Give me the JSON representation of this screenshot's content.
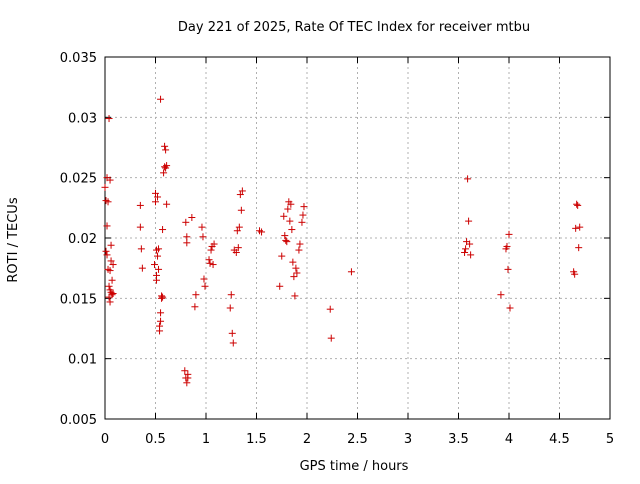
{
  "chart_data": {
    "type": "scatter",
    "title": "Day 221 of 2025, Rate Of TEC Index for receiver mtbu",
    "xlabel": "GPS time / hours",
    "ylabel": "ROTI / TECUs",
    "xlim": [
      0,
      5
    ],
    "ylim": [
      0.005,
      0.035
    ],
    "xticks": [
      0,
      0.5,
      1,
      1.5,
      2,
      2.5,
      3,
      3.5,
      4,
      4.5,
      5
    ],
    "xtick_labels": [
      "0",
      "0.5",
      "1",
      "1.5",
      "2",
      "2.5",
      "3",
      "3.5",
      "4",
      "4.5",
      "5"
    ],
    "yticks": [
      0.005,
      0.01,
      0.015,
      0.02,
      0.025,
      0.03,
      0.035
    ],
    "ytick_labels": [
      "0.005",
      "0.01",
      "0.015",
      "0.02",
      "0.025",
      "0.03",
      "0.035"
    ],
    "grid": true,
    "marker": "+",
    "series": [
      {
        "name": "ROTI",
        "color": "#cc0000",
        "x": [
          0.0,
          0.01,
          0.01,
          0.02,
          0.02,
          0.02,
          0.03,
          0.03,
          0.04,
          0.04,
          0.04,
          0.05,
          0.05,
          0.05,
          0.05,
          0.06,
          0.06,
          0.06,
          0.07,
          0.07,
          0.08,
          0.08,
          0.35,
          0.35,
          0.36,
          0.37,
          0.49,
          0.5,
          0.5,
          0.51,
          0.51,
          0.51,
          0.52,
          0.52,
          0.53,
          0.53,
          0.54,
          0.54,
          0.55,
          0.55,
          0.55,
          0.56,
          0.56,
          0.57,
          0.57,
          0.58,
          0.59,
          0.59,
          0.6,
          0.6,
          0.61,
          0.61,
          0.79,
          0.8,
          0.8,
          0.81,
          0.81,
          0.81,
          0.82,
          0.82,
          0.86,
          0.89,
          0.9,
          0.96,
          0.97,
          0.98,
          0.99,
          1.03,
          1.04,
          1.05,
          1.06,
          1.07,
          1.08,
          1.24,
          1.25,
          1.26,
          1.27,
          1.28,
          1.3,
          1.31,
          1.32,
          1.33,
          1.34,
          1.35,
          1.36,
          1.53,
          1.55,
          1.73,
          1.75,
          1.77,
          1.78,
          1.79,
          1.8,
          1.81,
          1.82,
          1.83,
          1.84,
          1.85,
          1.86,
          1.87,
          1.88,
          1.89,
          1.9,
          1.92,
          1.93,
          1.95,
          1.96,
          1.97,
          2.23,
          2.24,
          2.44,
          3.56,
          3.57,
          3.58,
          3.59,
          3.6,
          3.61,
          3.62,
          3.92,
          3.97,
          3.98,
          3.99,
          4.0,
          4.01,
          4.64,
          4.65,
          4.66,
          4.67,
          4.68,
          4.69,
          4.7
        ],
        "y": [
          0.0242,
          0.0231,
          0.0189,
          0.025,
          0.021,
          0.0186,
          0.023,
          0.0174,
          0.0299,
          0.016,
          0.0151,
          0.0248,
          0.0157,
          0.0147,
          0.0173,
          0.0194,
          0.0155,
          0.0181,
          0.0165,
          0.0153,
          0.0154,
          0.0178,
          0.0227,
          0.0209,
          0.0191,
          0.0175,
          0.0178,
          0.0237,
          0.023,
          0.019,
          0.0169,
          0.0165,
          0.0234,
          0.0185,
          0.0191,
          0.0174,
          0.0127,
          0.0123,
          0.0315,
          0.0138,
          0.0131,
          0.0152,
          0.015,
          0.0151,
          0.0207,
          0.0254,
          0.0276,
          0.0259,
          0.0258,
          0.0273,
          0.0228,
          0.026,
          0.009,
          0.0213,
          0.0084,
          0.0201,
          0.0196,
          0.008,
          0.0087,
          0.0084,
          0.0217,
          0.0143,
          0.0153,
          0.0209,
          0.0201,
          0.0166,
          0.016,
          0.0182,
          0.0179,
          0.019,
          0.0193,
          0.0178,
          0.0195,
          0.0142,
          0.0153,
          0.0121,
          0.0113,
          0.019,
          0.0188,
          0.0206,
          0.0192,
          0.0209,
          0.0236,
          0.0223,
          0.0239,
          0.0206,
          0.0205,
          0.016,
          0.0185,
          0.0218,
          0.0202,
          0.0198,
          0.0197,
          0.0224,
          0.023,
          0.0214,
          0.0228,
          0.0207,
          0.018,
          0.0168,
          0.0152,
          0.0175,
          0.0171,
          0.019,
          0.0195,
          0.0213,
          0.0219,
          0.0226,
          0.0141,
          0.0117,
          0.0172,
          0.0188,
          0.0191,
          0.0197,
          0.0249,
          0.0214,
          0.0195,
          0.0186,
          0.0153,
          0.0191,
          0.0193,
          0.0174,
          0.0203,
          0.0142,
          0.0172,
          0.017,
          0.0208,
          0.0228,
          0.0227,
          0.0192,
          0.0209
        ]
      }
    ]
  }
}
